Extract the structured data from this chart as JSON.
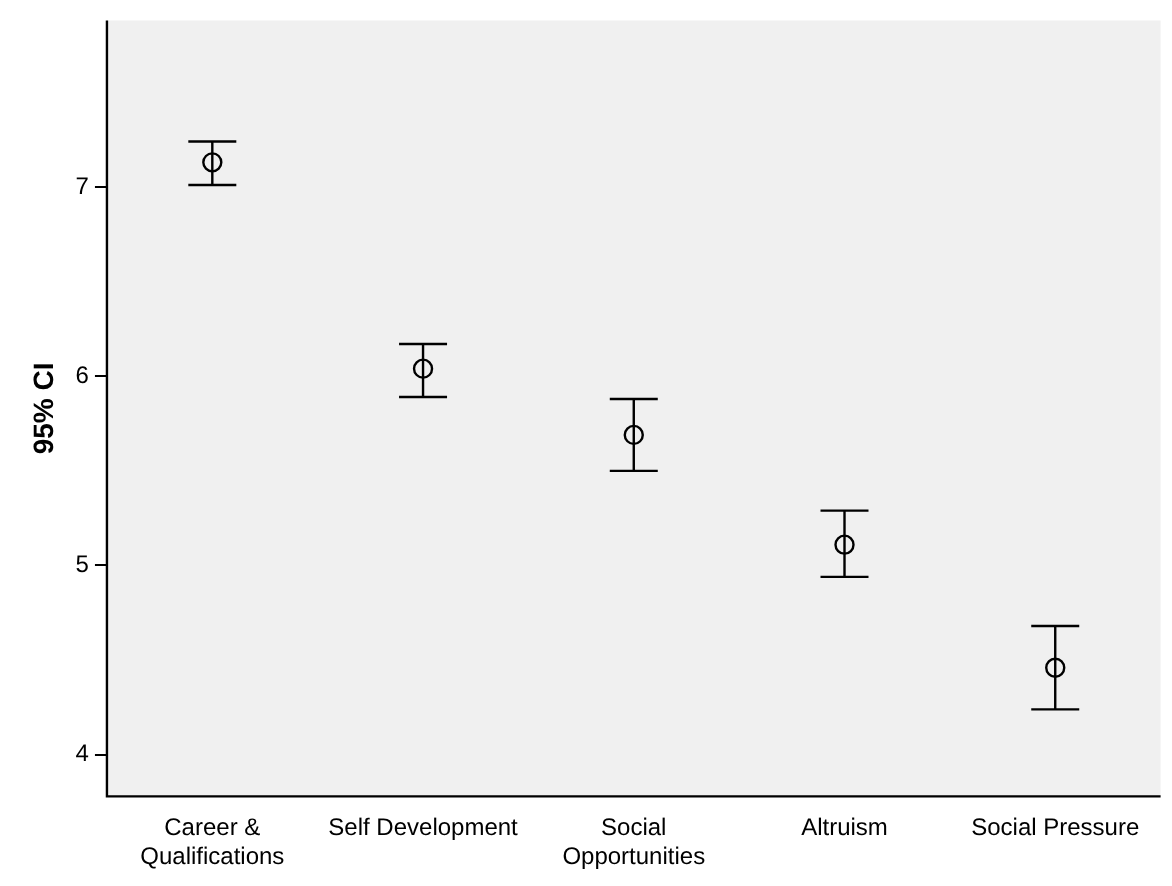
{
  "chart_data": {
    "type": "scatter",
    "ylabel": "95% CI",
    "categories": [
      "Career & Qualifications",
      "Self Development",
      "Social Opportunities",
      "Altruism",
      "Social Pressure"
    ],
    "values": [
      7.13,
      6.04,
      5.69,
      5.11,
      4.46
    ],
    "errors": [
      [
        7.01,
        7.24
      ],
      [
        5.89,
        6.17
      ],
      [
        5.5,
        5.88
      ],
      [
        4.94,
        5.29
      ],
      [
        4.24,
        4.68
      ]
    ],
    "color": "#000000",
    "marker": "circle",
    "ylim": [
      3.78,
      7.88
    ],
    "yticks": [
      4,
      5,
      6,
      7
    ],
    "grid": false,
    "legend": false
  }
}
